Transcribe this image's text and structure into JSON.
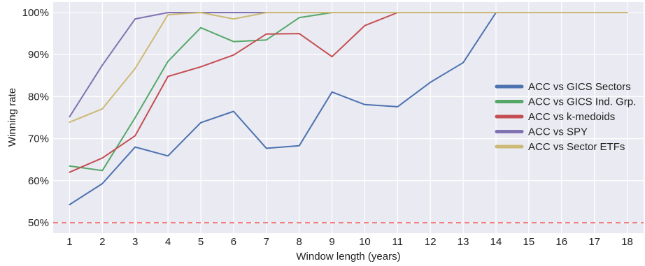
{
  "chart_data": {
    "type": "line",
    "xlabel": "Window length (years)",
    "ylabel": "Winning rate",
    "x": [
      1,
      2,
      3,
      4,
      5,
      6,
      7,
      8,
      9,
      10,
      11,
      12,
      13,
      14,
      15,
      16,
      17,
      18
    ],
    "xlim": [
      0.5,
      18.5
    ],
    "ylim": [
      47.5,
      102.5
    ],
    "yticks": [
      50,
      60,
      70,
      80,
      90,
      100
    ],
    "ytick_labels": [
      "50%",
      "60%",
      "70%",
      "80%",
      "90%",
      "100%"
    ],
    "grid": true,
    "legend_position": "center-right",
    "reference_line": {
      "y": 50,
      "color": "#f07f7f",
      "style": "dashed"
    },
    "series": [
      {
        "name": "ACC vs GICS Sectors",
        "color": "#4c72b0",
        "values": [
          54.3,
          59.3,
          68.0,
          65.9,
          73.8,
          76.5,
          67.7,
          68.3,
          81.1,
          78.1,
          77.6,
          83.4,
          88.1,
          100,
          100,
          100,
          100,
          100
        ]
      },
      {
        "name": "ACC vs GICS Ind. Grp.",
        "color": "#55a868",
        "values": [
          63.5,
          62.4,
          75.0,
          88.4,
          96.4,
          93.1,
          93.5,
          98.8,
          100,
          100,
          100,
          100,
          100,
          100,
          100,
          100,
          100,
          100
        ]
      },
      {
        "name": "ACC vs k-medoids",
        "color": "#c44e52",
        "values": [
          62.0,
          65.4,
          70.7,
          84.8,
          87.1,
          89.9,
          94.9,
          95.0,
          89.5,
          96.9,
          100,
          100,
          100,
          100,
          100,
          100,
          100,
          100
        ]
      },
      {
        "name": "ACC vs SPY",
        "color": "#8172b2",
        "values": [
          75.2,
          87.5,
          98.5,
          100,
          100,
          100,
          100,
          100,
          100,
          100,
          100,
          100,
          100,
          100,
          100,
          100,
          100,
          100
        ]
      },
      {
        "name": "ACC vs Sector ETFs",
        "color": "#ccb974",
        "values": [
          73.9,
          77.1,
          86.7,
          99.5,
          100,
          98.5,
          100,
          100,
          100,
          100,
          100,
          100,
          100,
          100,
          100,
          100,
          100,
          100
        ]
      }
    ]
  }
}
